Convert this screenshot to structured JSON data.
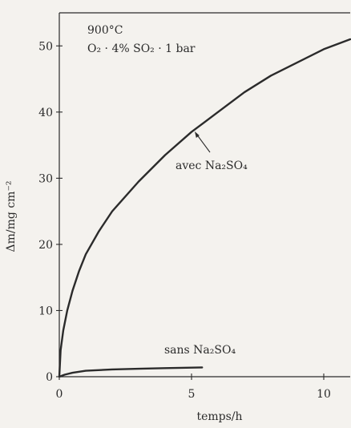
{
  "chart_data": {
    "type": "line",
    "annotation": {
      "line1": "900°C",
      "line2": "O₂ · 4% SO₂ · 1 bar"
    },
    "xlabel": "temps/h",
    "ylabel": "Δm/mg cm⁻²",
    "xlim": [
      0,
      11
    ],
    "ylim": [
      0,
      55
    ],
    "x_ticks": [
      0,
      5,
      10
    ],
    "y_ticks": [
      0,
      10,
      20,
      30,
      40,
      50
    ],
    "grid": false,
    "series": [
      {
        "name": "avec Na₂SO₄",
        "color": "#2b2b2b",
        "points": [
          [
            0,
            0
          ],
          [
            0.05,
            4
          ],
          [
            0.15,
            7
          ],
          [
            0.3,
            10
          ],
          [
            0.5,
            13
          ],
          [
            0.75,
            16
          ],
          [
            1,
            18.5
          ],
          [
            1.5,
            22
          ],
          [
            2,
            25
          ],
          [
            3,
            29.5
          ],
          [
            4,
            33.5
          ],
          [
            5,
            37
          ],
          [
            6,
            40
          ],
          [
            7,
            43
          ],
          [
            8,
            45.5
          ],
          [
            9,
            47.5
          ],
          [
            10,
            49.5
          ],
          [
            11,
            51
          ]
        ]
      },
      {
        "name": "sans Na₂SO₄",
        "color": "#2b2b2b",
        "points": [
          [
            0,
            0
          ],
          [
            0.2,
            0.3
          ],
          [
            0.5,
            0.6
          ],
          [
            1,
            0.9
          ],
          [
            2,
            1.1
          ],
          [
            3,
            1.2
          ],
          [
            4,
            1.3
          ],
          [
            5.4,
            1.4
          ]
        ]
      }
    ],
    "labels": [
      {
        "text": "avec Na₂SO₄",
        "series": 0
      },
      {
        "text": "sans Na₂SO₄",
        "series": 1
      }
    ]
  }
}
